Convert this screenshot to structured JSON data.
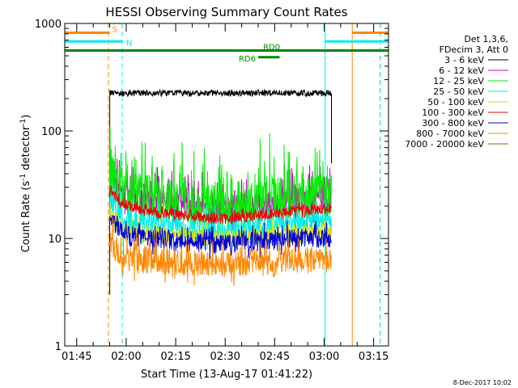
{
  "chart_data": {
    "type": "line",
    "title": "HESSI Observing Summary Count Rates",
    "xlabel": "Start Time (13-Aug-17 01:41:22)",
    "ylabel_main": "Count Rate (s",
    "ylabel_sup1": "-1",
    "ylabel_mid": " detector",
    "ylabel_sup2": "-1",
    "ylabel_end": ")",
    "y_scale": "log",
    "ylim": [
      1,
      1000
    ],
    "xlim_minutes": [
      101.37,
      199.5
    ],
    "x_ticks": [
      {
        "label": "01:45",
        "minutes": 105
      },
      {
        "label": "02:00",
        "minutes": 120
      },
      {
        "label": "02:15",
        "minutes": 135
      },
      {
        "label": "02:30",
        "minutes": 150
      },
      {
        "label": "02:45",
        "minutes": 165
      },
      {
        "label": "03:00",
        "minutes": 180
      },
      {
        "label": "03:15",
        "minutes": 195
      }
    ],
    "y_ticks": [
      {
        "label": "1",
        "value": 1
      },
      {
        "label": "10",
        "value": 10
      },
      {
        "label": "100",
        "value": 100
      },
      {
        "label": "1000",
        "value": 1000
      }
    ],
    "legend_header": [
      "Det 1,3,6,",
      "FDecim 3, Att 0"
    ],
    "legend_position": "right",
    "data_start_minutes": 115.0,
    "data_end_minutes": 182.2,
    "series": [
      {
        "name": "3 - 6 keV",
        "color": "#000000",
        "level": 225,
        "noise": 0.03,
        "drift": 0.02,
        "spike": 0.0
      },
      {
        "name": "6 - 12 keV",
        "color": "#cc00cc",
        "level": 21,
        "noise": 0.12,
        "drift": 0.1,
        "spike": 0.25
      },
      {
        "name": "12 - 25 keV",
        "color": "#00ee00",
        "level": 23,
        "noise": 0.2,
        "drift": 0.12,
        "spike": 0.45
      },
      {
        "name": "25 - 50 keV",
        "color": "#00eeee",
        "level": 13,
        "noise": 0.1,
        "drift": 0.08,
        "spike": 0.15
      },
      {
        "name": "50 - 100 keV",
        "color": "#dddd00",
        "level": 10.5,
        "noise": 0.08,
        "drift": 0.05,
        "spike": 0.1
      },
      {
        "name": "100 - 300 keV",
        "color": "#ee0000",
        "level": 17,
        "noise": 0.05,
        "drift": 0.1,
        "spike": 0.05
      },
      {
        "name": "300 - 800 keV",
        "color": "#0000dd",
        "level": 9.5,
        "noise": 0.09,
        "drift": 0.06,
        "spike": 0.1
      },
      {
        "name": "800 - 7000 keV",
        "color": "#ff8800",
        "level": 6,
        "noise": 0.12,
        "drift": 0.04,
        "spike": 0.15
      },
      {
        "name": "7000 - 20000 keV",
        "color": "#886600",
        "level": null,
        "noise": 0,
        "drift": 0,
        "spike": 0
      }
    ],
    "flag_bars": [
      {
        "label": "S",
        "color": "#ff8800",
        "level_value": 820,
        "segments": [
          [
            101.37,
            115.0
          ],
          [
            188.5,
            199.5
          ]
        ]
      },
      {
        "label": "N",
        "color": "#00eeee",
        "level_value": 680,
        "segments": [
          [
            101.37,
            119.0
          ],
          [
            180.3,
            199.5
          ]
        ]
      },
      {
        "label": "RD0",
        "color": "#008800",
        "level_value": 560,
        "segments": [
          [
            101.37,
            199.5
          ]
        ]
      },
      {
        "label": "RD6",
        "color": "#008800",
        "level_value": 485,
        "segments": [
          [
            160.0,
            166.5
          ]
        ]
      }
    ],
    "vlines": [
      {
        "minutes": 101.37,
        "color": "#00eeee",
        "style": "solid"
      },
      {
        "minutes": 114.6,
        "color": "#ff8800",
        "style": "dashed"
      },
      {
        "minutes": 118.8,
        "color": "#00eeee",
        "style": "dashed"
      },
      {
        "minutes": 180.3,
        "color": "#00eeee",
        "style": "solid"
      },
      {
        "minutes": 188.5,
        "color": "#ff8800",
        "style": "solid"
      },
      {
        "minutes": 197.0,
        "color": "#ff8800",
        "style": "dashed"
      },
      {
        "minutes": 197.0,
        "color": "#00eeee",
        "style": "dashed"
      }
    ]
  },
  "footer_date": "8-Dec-2017 10:02"
}
